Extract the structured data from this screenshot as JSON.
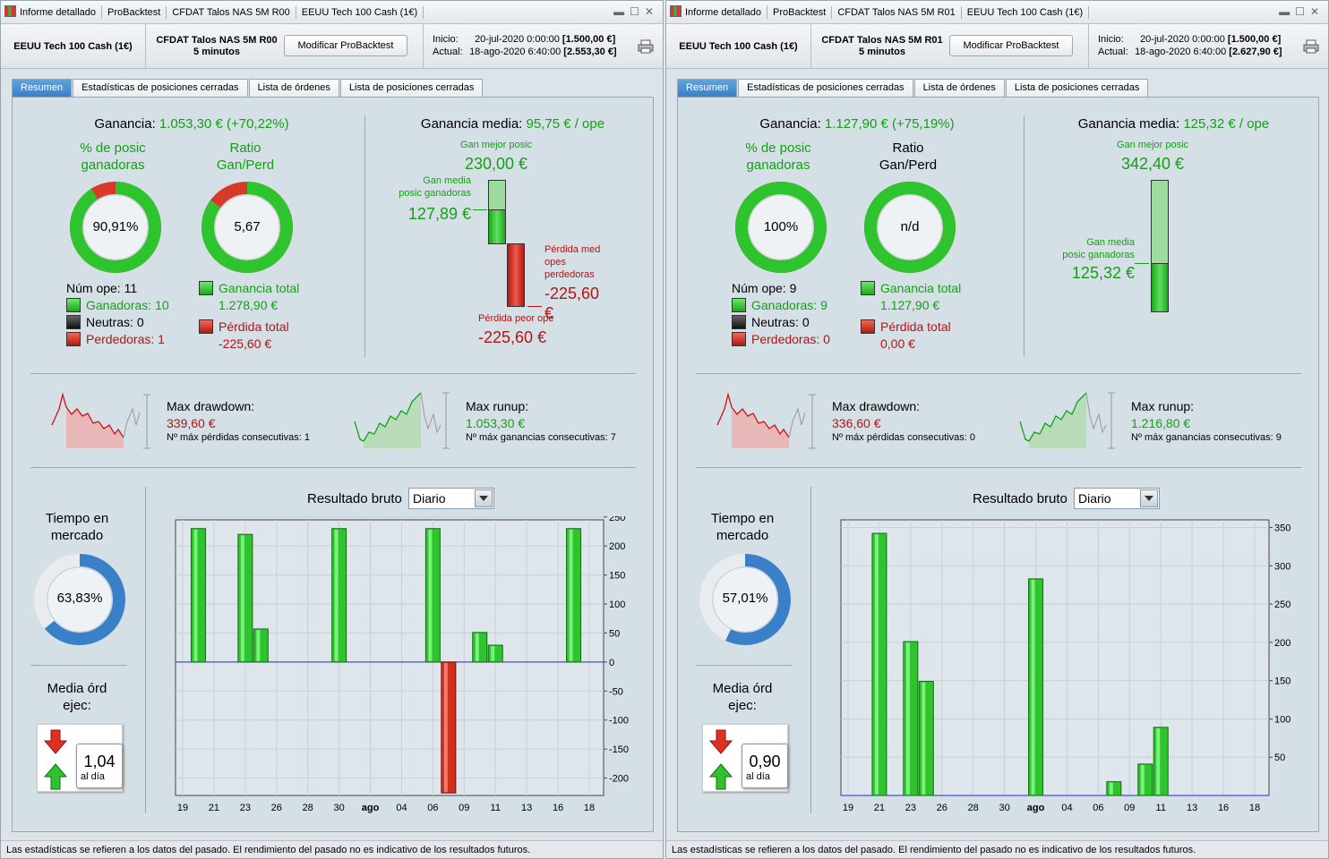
{
  "tabs": [
    "Resumen",
    "Estadísticas de posiciones cerradas",
    "Lista de órdenes",
    "Lista de posiciones cerradas"
  ],
  "footer_text": "Las estadísticas se refieren a los datos del pasado. El rendimiento del pasado no es indicativo de los resultados futuros.",
  "labels": {
    "informe": "Informe detallado",
    "probacktest": "ProBacktest",
    "instrument": "EEUU Tech 100 Cash (1€)",
    "modify": "Modificar ProBacktest",
    "inicio": "Inicio:",
    "actual": "Actual:",
    "ganancia": "Ganancia:",
    "pct_posic": "% de posic\nganadoras",
    "ratio": "Ratio\nGan/Perd",
    "num_ope": "Núm ope:",
    "ganadoras": "Ganadoras:",
    "neutras": "Neutras:",
    "perdedoras": "Perdedoras:",
    "ganancia_total": "Ganancia total",
    "perdida_total": "Pérdida total",
    "ganancia_media": "Ganancia media:",
    "gan_mejor": "Gan mejor posic",
    "gan_media_posic": "Gan media\nposic ganadoras",
    "perdida_med": "Pérdida med\nopes\nperdedoras",
    "perdida_peor": "Pérdida peor ope",
    "max_drawdown": "Max drawdown:",
    "max_runup": "Max runup:",
    "max_perdidas_consec": "Nº máx pérdidas consecutivas:",
    "max_ganancias_consec": "Nº máx ganancias consecutivas:",
    "resultado_bruto": "Resultado bruto",
    "tiempo_mercado": "Tiempo en\nmercado",
    "media_ord": "Media órd\nejec:",
    "al_dia": "al día"
  },
  "colors": {
    "green": "#14a014",
    "red": "#b41414",
    "accent": "#3a80c8"
  },
  "panels": [
    {
      "strategy": "CFDAT Talos NAS 5M R00",
      "timeframe": "5 minutos",
      "inicio_date": "20-jul-2020 0:00:00",
      "inicio_value": "[1.500,00 €]",
      "actual_date": "18-ago-2020 6:40:00",
      "actual_value": "[2.553,30 €]",
      "ganancia": "1.053,30 € (+70,22%)",
      "pct_ganadoras": "90,91%",
      "pct_ganadoras_frac": 0.9091,
      "ratio": "5,67",
      "ratio_frac": 0.85,
      "num_ope": "11",
      "ganadoras": "10",
      "neutras": "0",
      "perdedoras": "1",
      "ganancia_total": "1.278,90 €",
      "perdida_total": "-225,60 €",
      "ganancia_media": "95,75 € / ope",
      "gan_mejor": "230,00 €",
      "gan_media": "127,89 €",
      "perdida_med": "-225,60 €",
      "perdida_peor": "-225,60 €",
      "max_drawdown": "339,60 €",
      "max_perdidas_consec": "1",
      "max_runup": "1.053,30 €",
      "max_ganancias_consec": "7",
      "resultado_periodo": "Diario",
      "tiempo_mercado": "63,83%",
      "tiempo_mercado_frac": 0.6383,
      "media_ord": "1,04",
      "chart_data": {
        "type": "bar",
        "title": "Resultado bruto",
        "x_ticks": [
          "19",
          "21",
          "23",
          "26",
          "28",
          "30",
          "ago",
          "04",
          "06",
          "09",
          "11",
          "13",
          "16",
          "18"
        ],
        "x_bold": "ago",
        "y_ticks": [
          250,
          200,
          150,
          100,
          50,
          0,
          -50,
          -100,
          -150,
          -200
        ],
        "ylim": [
          -230,
          245
        ],
        "xlim": [
          0,
          13
        ],
        "series": [
          {
            "values": [
              {
                "x": 0.5,
                "y": 230
              },
              {
                "x": 2.0,
                "y": 220
              },
              {
                "x": 2.5,
                "y": 57
              },
              {
                "x": 5.0,
                "y": 230
              },
              {
                "x": 8.0,
                "y": 230
              },
              {
                "x": 8.5,
                "y": -225.6
              },
              {
                "x": 9.5,
                "y": 51
              },
              {
                "x": 10.0,
                "y": 29
              },
              {
                "x": 12.5,
                "y": 230
              }
            ]
          }
        ]
      }
    },
    {
      "strategy": "CFDAT Talos NAS 5M R01",
      "timeframe": "5 minutos",
      "inicio_date": "20-jul-2020 0:00:00",
      "inicio_value": "[1.500,00 €]",
      "actual_date": "18-ago-2020 6:40:00",
      "actual_value": "[2.627,90 €]",
      "ganancia": "1.127,90 € (+75,19%)",
      "pct_ganadoras": "100%",
      "pct_ganadoras_frac": 1.0,
      "ratio": "n/d",
      "ratio_frac": 1.0,
      "num_ope": "9",
      "ganadoras": "9",
      "neutras": "0",
      "perdedoras": "0",
      "ganancia_total": "1.127,90 €",
      "perdida_total": "0,00 €",
      "ganancia_media": "125,32 € / ope",
      "gan_mejor": "342,40 €",
      "gan_media": "125,32 €",
      "perdida_med": "",
      "perdida_peor": "",
      "max_drawdown": "336,60 €",
      "max_perdidas_consec": "0",
      "max_runup": "1.216,80 €",
      "max_ganancias_consec": "9",
      "resultado_periodo": "Diario",
      "tiempo_mercado": "57,01%",
      "tiempo_mercado_frac": 0.5701,
      "media_ord": "0,90",
      "chart_data": {
        "type": "bar",
        "title": "Resultado bruto",
        "x_ticks": [
          "19",
          "21",
          "23",
          "26",
          "28",
          "30",
          "ago",
          "04",
          "06",
          "09",
          "11",
          "13",
          "16",
          "18"
        ],
        "x_bold": "ago",
        "y_ticks": [
          350,
          300,
          250,
          200,
          150,
          100,
          50
        ],
        "ylim": [
          0,
          360
        ],
        "xlim": [
          0,
          13
        ],
        "series": [
          {
            "values": [
              {
                "x": 1.0,
                "y": 342.4
              },
              {
                "x": 2.0,
                "y": 201
              },
              {
                "x": 2.5,
                "y": 149
              },
              {
                "x": 6.0,
                "y": 283
              },
              {
                "x": 8.5,
                "y": 18
              },
              {
                "x": 9.5,
                "y": 41
              },
              {
                "x": 10.0,
                "y": 89
              }
            ]
          }
        ]
      }
    }
  ]
}
